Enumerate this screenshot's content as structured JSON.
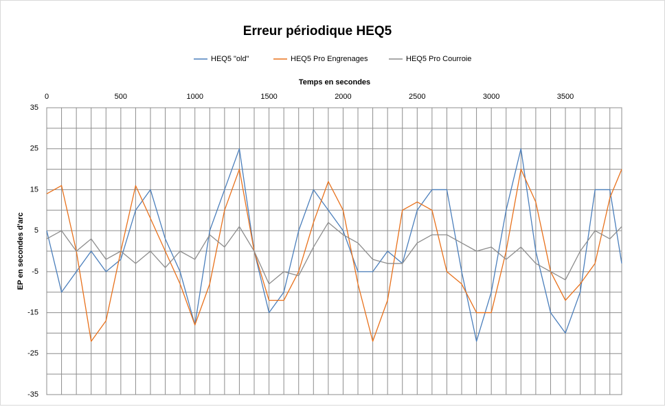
{
  "chart_data": {
    "type": "line",
    "title": "Erreur périodique HEQ5",
    "x_label": "Temps en secondes",
    "y_label": "EP en secondes d'arc",
    "x": [
      0,
      100,
      200,
      300,
      400,
      500,
      600,
      700,
      800,
      900,
      1000,
      1100,
      1200,
      1300,
      1400,
      1500,
      1600,
      1700,
      1800,
      1900,
      2000,
      2100,
      2200,
      2300,
      2400,
      2500,
      2600,
      2700,
      2800,
      2900,
      3000,
      3100,
      3200,
      3300,
      3400,
      3500,
      3600,
      3700,
      3800,
      3880
    ],
    "series": [
      {
        "name": "HEQ5 \"old\"",
        "color": "#4a7ebb",
        "values": [
          5,
          -10,
          -5,
          0,
          -5,
          -2,
          10,
          15,
          3,
          -5,
          -18,
          5,
          15,
          25,
          0,
          -15,
          -10,
          5,
          15,
          10,
          5,
          -5,
          -5,
          0,
          -3,
          10,
          15,
          15,
          -5,
          -22,
          -10,
          10,
          25,
          0,
          -15,
          -20,
          -10,
          15,
          15,
          -3
        ]
      },
      {
        "name": "HEQ5 Pro Engrenages",
        "color": "#e8701a",
        "values": [
          14,
          16,
          0,
          -22,
          -17,
          0,
          16,
          8,
          0,
          -8,
          -18,
          -8,
          10,
          20,
          0,
          -12,
          -12,
          -5,
          7,
          17,
          10,
          -8,
          -22,
          -12,
          10,
          12,
          10,
          -5,
          -8,
          -15,
          -15,
          0,
          20,
          12,
          -5,
          -12,
          -8,
          -3,
          13,
          20
        ]
      },
      {
        "name": "HEQ5 Pro Courroie",
        "color": "#8c8c8c",
        "values": [
          3,
          5,
          0,
          3,
          -2,
          0,
          -3,
          0,
          -4,
          0,
          -2,
          4,
          1,
          6,
          0,
          -8,
          -5,
          -6,
          1,
          7,
          4,
          2,
          -2,
          -3,
          -3,
          2,
          4,
          4,
          2,
          0,
          1,
          -2,
          1,
          -3,
          -5,
          -7,
          0,
          5,
          3,
          6
        ]
      }
    ],
    "xlim": [
      0,
      3880
    ],
    "xticks": [
      0,
      500,
      1000,
      1500,
      2000,
      2500,
      3000,
      3500
    ],
    "xminorticks": [
      100,
      200,
      300,
      400,
      600,
      700,
      800,
      900,
      1100,
      1200,
      1300,
      1400,
      1600,
      1700,
      1800,
      1900,
      2100,
      2200,
      2300,
      2400,
      2600,
      2700,
      2800,
      2900,
      3100,
      3200,
      3300,
      3400,
      3600,
      3700,
      3800
    ],
    "ylim": [
      -35,
      35
    ],
    "yticks": [
      35,
      25,
      15,
      5,
      -5,
      -15,
      -25,
      -35
    ],
    "yminorticks": [
      30,
      20,
      10,
      0,
      -10,
      -20,
      -30
    ],
    "grid": true,
    "legend": "top"
  }
}
